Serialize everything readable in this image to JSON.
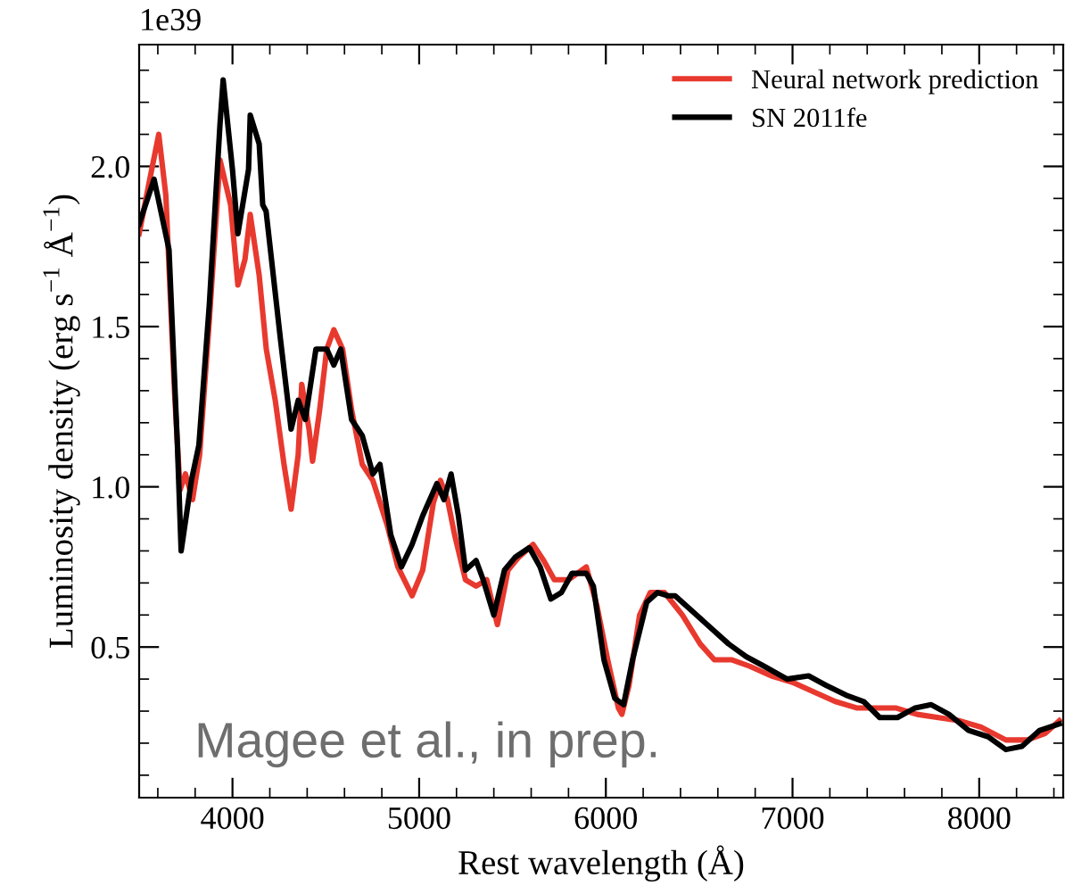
{
  "chart_data": {
    "type": "line",
    "xlabel": "Rest wavelength (Å)",
    "ylabel": "Luminosity density (erg s$^{−1}$ Å$^{−1}$)",
    "annotations": [
      "1e39",
      "Magee et al., in prep."
    ],
    "xlim": [
      3500,
      8450
    ],
    "xticks": [
      4000,
      5000,
      6000,
      7000,
      8000
    ],
    "ylim": [
      0.03,
      2.38
    ],
    "yticks": [
      {
        "value": 0.5,
        "label": "0.5"
      },
      {
        "value": 1.0,
        "label": "1.0"
      },
      {
        "value": 1.5,
        "label": "1.5"
      },
      {
        "value": 2.0,
        "label": "2.0"
      }
    ],
    "legend": "top right",
    "grid": false,
    "line_style": "solid",
    "series": [
      {
        "name": "Neural network prediction",
        "color": "#e8392f",
        "x": [
          3500,
          3557,
          3605,
          3643,
          3690,
          3719,
          3748,
          3786,
          3824,
          3876,
          3933,
          3990,
          4029,
          4067,
          4095,
          4143,
          4181,
          4229,
          4276,
          4314,
          4352,
          4371,
          4410,
          4429,
          4467,
          4505,
          4543,
          4590,
          4638,
          4695,
          4752,
          4829,
          4886,
          4962,
          5019,
          5076,
          5114,
          5152,
          5190,
          5248,
          5305,
          5362,
          5419,
          5476,
          5533,
          5610,
          5667,
          5724,
          5800,
          5895,
          5952,
          6010,
          6067,
          6086,
          6124,
          6181,
          6238,
          6314,
          6410,
          6505,
          6581,
          6676,
          6771,
          6886,
          7000,
          7114,
          7229,
          7343,
          7457,
          7552,
          7667,
          7781,
          7895,
          8010,
          8143,
          8257,
          8352,
          8429
        ],
        "values": [
          1.79,
          1.96,
          2.1,
          1.91,
          1.29,
          0.99,
          1.04,
          0.96,
          1.1,
          1.52,
          2.02,
          1.88,
          1.63,
          1.71,
          1.85,
          1.66,
          1.43,
          1.27,
          1.07,
          0.93,
          1.1,
          1.32,
          1.18,
          1.08,
          1.24,
          1.43,
          1.49,
          1.43,
          1.24,
          1.07,
          1.02,
          0.88,
          0.75,
          0.66,
          0.74,
          0.95,
          1.02,
          0.96,
          0.85,
          0.71,
          0.69,
          0.71,
          0.57,
          0.74,
          0.78,
          0.82,
          0.77,
          0.71,
          0.71,
          0.75,
          0.63,
          0.46,
          0.31,
          0.29,
          0.38,
          0.6,
          0.67,
          0.67,
          0.6,
          0.51,
          0.46,
          0.46,
          0.44,
          0.41,
          0.39,
          0.36,
          0.33,
          0.31,
          0.31,
          0.31,
          0.29,
          0.28,
          0.27,
          0.25,
          0.21,
          0.21,
          0.23,
          0.27
        ]
      },
      {
        "name": "SN 2011fe",
        "color": "#000000",
        "x": [
          3500,
          3580,
          3660,
          3705,
          3725,
          3780,
          3820,
          3876,
          3933,
          3950,
          4000,
          4029,
          4086,
          4095,
          4143,
          4162,
          4180,
          4257,
          4314,
          4352,
          4390,
          4447,
          4505,
          4543,
          4580,
          4638,
          4695,
          4752,
          4790,
          4848,
          4905,
          4962,
          5019,
          5095,
          5133,
          5171,
          5210,
          5248,
          5305,
          5343,
          5400,
          5457,
          5514,
          5590,
          5648,
          5705,
          5762,
          5819,
          5895,
          5933,
          5990,
          6048,
          6095,
          6143,
          6219,
          6276,
          6333,
          6371,
          6467,
          6562,
          6657,
          6752,
          6848,
          6971,
          7086,
          7181,
          7286,
          7381,
          7467,
          7562,
          7657,
          7743,
          7838,
          7943,
          8048,
          8143,
          8229,
          8324,
          8429
        ],
        "values": [
          1.82,
          1.96,
          1.74,
          1.13,
          0.8,
          1.02,
          1.13,
          1.57,
          2.13,
          2.27,
          1.99,
          1.79,
          1.99,
          2.16,
          2.07,
          1.88,
          1.86,
          1.46,
          1.18,
          1.27,
          1.21,
          1.43,
          1.43,
          1.38,
          1.43,
          1.21,
          1.16,
          1.04,
          1.07,
          0.85,
          0.75,
          0.82,
          0.91,
          1.01,
          0.96,
          1.04,
          0.91,
          0.74,
          0.77,
          0.71,
          0.6,
          0.74,
          0.78,
          0.81,
          0.75,
          0.65,
          0.67,
          0.73,
          0.73,
          0.69,
          0.46,
          0.34,
          0.32,
          0.46,
          0.64,
          0.67,
          0.66,
          0.66,
          0.61,
          0.56,
          0.51,
          0.47,
          0.44,
          0.4,
          0.41,
          0.38,
          0.35,
          0.33,
          0.28,
          0.28,
          0.31,
          0.32,
          0.29,
          0.24,
          0.22,
          0.18,
          0.19,
          0.24,
          0.26
        ]
      }
    ]
  }
}
